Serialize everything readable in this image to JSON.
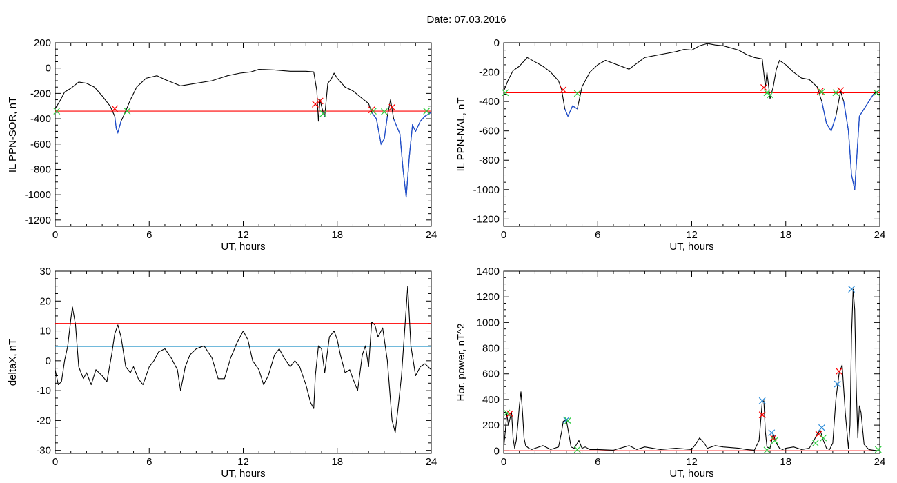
{
  "figure_title": "Date:  07.03.2016",
  "colors": {
    "trace": "#000000",
    "threshold_red": "#ff0000",
    "threshold_blue": "#1e90c8",
    "trace_blue": "#1f4fd0",
    "marker_red": "#ff0000",
    "marker_green": "#2ecc40",
    "marker_blue": "#2a8ad8"
  },
  "chart_data": [
    {
      "id": "il-ppn-sor",
      "type": "line",
      "title": "",
      "xlabel": "UT, hours",
      "ylabel": "IL PPN-SOR, nT",
      "xlim": [
        0,
        24
      ],
      "ylim": [
        -1250,
        200
      ],
      "xticks": [
        0,
        6,
        12,
        18,
        24
      ],
      "yticks": [
        200,
        0,
        -200,
        -400,
        -600,
        -800,
        -1000,
        -1200
      ],
      "grid": false,
      "threshold": {
        "value": -340,
        "color": "red"
      },
      "series": [
        {
          "x": [
            0,
            0.3,
            0.6,
            1.0,
            1.5,
            2.0,
            2.5,
            3.0,
            3.5,
            3.8,
            3.9,
            4.0,
            4.2,
            4.5,
            4.8,
            5.2,
            5.8,
            6.5,
            7.0,
            8.0,
            9.0,
            10.0,
            11.0,
            11.8,
            12.5,
            13.0,
            14.0,
            15.0,
            16.0,
            16.5,
            16.7,
            16.8,
            16.9,
            17.0,
            17.1,
            17.2,
            17.4,
            17.6,
            17.8,
            18.0,
            18.5,
            19.0,
            19.5,
            20.0,
            20.2,
            20.5,
            20.8,
            21.0,
            21.2,
            21.4,
            21.6,
            21.8,
            22.0,
            22.2,
            22.4,
            22.6,
            22.8,
            23.0,
            23.3,
            23.6,
            24.0
          ],
          "y": [
            -320,
            -260,
            -190,
            -160,
            -110,
            -120,
            -150,
            -220,
            -300,
            -380,
            -480,
            -510,
            -420,
            -340,
            -250,
            -150,
            -80,
            -60,
            -90,
            -140,
            -120,
            -100,
            -60,
            -40,
            -30,
            -10,
            -15,
            -25,
            -25,
            -30,
            -180,
            -420,
            -250,
            -300,
            -350,
            -380,
            -120,
            -90,
            -40,
            -80,
            -150,
            -180,
            -230,
            -280,
            -350,
            -400,
            -600,
            -560,
            -380,
            -250,
            -400,
            -460,
            -520,
            -800,
            -1020,
            -700,
            -450,
            -500,
            -420,
            -380,
            -350
          ]
        }
      ],
      "markers": [
        {
          "x": 3.8,
          "y": -320,
          "color": "red"
        },
        {
          "x": 4.6,
          "y": -340,
          "color": "green"
        },
        {
          "x": 16.6,
          "y": -285,
          "color": "red"
        },
        {
          "x": 16.9,
          "y": -260,
          "color": "red"
        },
        {
          "x": 17.1,
          "y": -360,
          "color": "green"
        },
        {
          "x": 20.2,
          "y": -330,
          "color": "red"
        },
        {
          "x": 20.3,
          "y": -340,
          "color": "green"
        },
        {
          "x": 21.0,
          "y": -345,
          "color": "green"
        },
        {
          "x": 21.5,
          "y": -310,
          "color": "red"
        },
        {
          "x": 23.7,
          "y": -340,
          "color": "green"
        },
        {
          "x": 0.1,
          "y": -340,
          "color": "green"
        }
      ]
    },
    {
      "id": "il-ppn-nal",
      "type": "line",
      "title": "",
      "xlabel": "UT, hours",
      "ylabel": "IL PPN-NAL, nT",
      "xlim": [
        0,
        24
      ],
      "ylim": [
        -1250,
        0
      ],
      "xticks": [
        0,
        6,
        12,
        18,
        24
      ],
      "yticks": [
        0,
        -200,
        -400,
        -600,
        -800,
        -1000,
        -1200
      ],
      "grid": false,
      "threshold": {
        "value": -340,
        "color": "red"
      },
      "series": [
        {
          "x": [
            0,
            0.3,
            0.6,
            1.0,
            1.5,
            2.0,
            2.5,
            3.0,
            3.5,
            3.7,
            3.9,
            4.1,
            4.4,
            4.7,
            5.0,
            5.5,
            6.0,
            6.5,
            7.0,
            8.0,
            9.0,
            10.0,
            11.0,
            11.5,
            12.0,
            12.5,
            13.0,
            13.5,
            14.0,
            15.0,
            15.5,
            16.0,
            16.5,
            16.7,
            16.8,
            17.0,
            17.2,
            17.4,
            17.6,
            18.0,
            18.5,
            19.0,
            19.5,
            20.0,
            20.3,
            20.6,
            20.9,
            21.2,
            21.5,
            21.7,
            22.0,
            22.2,
            22.4,
            22.7,
            23.0,
            23.3,
            23.6,
            24.0
          ],
          "y": [
            -330,
            -250,
            -190,
            -160,
            -100,
            -130,
            -160,
            -200,
            -260,
            -320,
            -450,
            -500,
            -430,
            -450,
            -300,
            -200,
            -150,
            -120,
            -140,
            -180,
            -100,
            -80,
            -60,
            -45,
            -50,
            -20,
            -5,
            -15,
            -20,
            -50,
            -80,
            -100,
            -110,
            -300,
            -200,
            -380,
            -300,
            -180,
            -120,
            -150,
            -200,
            -240,
            -250,
            -300,
            -400,
            -550,
            -600,
            -500,
            -330,
            -400,
            -600,
            -900,
            -1000,
            -500,
            -450,
            -400,
            -350,
            -320
          ]
        }
      ],
      "markers": [
        {
          "x": 3.8,
          "y": -320,
          "color": "red"
        },
        {
          "x": 4.7,
          "y": -345,
          "color": "green"
        },
        {
          "x": 16.6,
          "y": -305,
          "color": "red"
        },
        {
          "x": 16.8,
          "y": -340,
          "color": "green"
        },
        {
          "x": 17.0,
          "y": -355,
          "color": "green"
        },
        {
          "x": 20.2,
          "y": -330,
          "color": "red"
        },
        {
          "x": 20.3,
          "y": -335,
          "color": "green"
        },
        {
          "x": 21.2,
          "y": -340,
          "color": "green"
        },
        {
          "x": 21.5,
          "y": -325,
          "color": "red"
        },
        {
          "x": 23.8,
          "y": -340,
          "color": "green"
        },
        {
          "x": 0.1,
          "y": -340,
          "color": "green"
        }
      ]
    },
    {
      "id": "deltax",
      "type": "line",
      "title": "",
      "xlabel": "UT, hours",
      "ylabel": "deltaX, nT",
      "xlim": [
        0,
        24
      ],
      "ylim": [
        -31,
        30
      ],
      "xticks": [
        0,
        6,
        12,
        18,
        24
      ],
      "yticks": [
        30,
        20,
        10,
        0,
        -10,
        -20,
        -30
      ],
      "grid": false,
      "thresholds": [
        {
          "value": 12.5,
          "color": "red"
        },
        {
          "value": 4.8,
          "color": "blue"
        }
      ],
      "series": [
        {
          "x": [
            0,
            0.2,
            0.4,
            0.6,
            0.8,
            1.0,
            1.1,
            1.3,
            1.5,
            1.8,
            2.0,
            2.3,
            2.6,
            3.0,
            3.3,
            3.6,
            3.8,
            4.0,
            4.2,
            4.5,
            4.8,
            5.0,
            5.3,
            5.6,
            6.0,
            6.3,
            6.6,
            7.0,
            7.4,
            7.8,
            8.0,
            8.3,
            8.6,
            9.0,
            9.5,
            10.0,
            10.4,
            10.8,
            11.2,
            11.6,
            12.0,
            12.3,
            12.6,
            13.0,
            13.3,
            13.6,
            14.0,
            14.3,
            14.6,
            15.0,
            15.3,
            15.6,
            16.0,
            16.3,
            16.5,
            16.6,
            16.8,
            17.0,
            17.2,
            17.5,
            17.8,
            18.0,
            18.2,
            18.5,
            18.8,
            19.0,
            19.3,
            19.6,
            19.8,
            20.0,
            20.2,
            20.4,
            20.6,
            20.9,
            21.2,
            21.5,
            21.7,
            21.9,
            22.1,
            22.3,
            22.5,
            22.7,
            23.0,
            23.3,
            23.6,
            24.0
          ],
          "y": [
            -3,
            -8,
            -7,
            0,
            5,
            14,
            18,
            12,
            -2,
            -6,
            -4,
            -8,
            -3,
            -5,
            -7,
            2,
            9,
            12,
            8,
            -2,
            -4,
            -2,
            -6,
            -8,
            -2,
            0,
            3,
            4,
            1,
            -3,
            -10,
            -2,
            2,
            4,
            5,
            1,
            -6,
            -6,
            1,
            6,
            10,
            7,
            0,
            -3,
            -8,
            -5,
            2,
            4,
            1,
            -2,
            0,
            -2,
            -8,
            -14,
            -16,
            -5,
            5,
            4,
            -4,
            8,
            10,
            7,
            2,
            -4,
            -3,
            -6,
            -10,
            2,
            5,
            -2,
            13,
            12,
            8,
            11,
            0,
            -20,
            -24,
            -15,
            -5,
            10,
            25,
            5,
            -5,
            -2,
            -1,
            -3
          ]
        }
      ],
      "markers": []
    },
    {
      "id": "hor-power",
      "type": "line",
      "title": "",
      "xlabel": "UT, hours",
      "ylabel": "Hor. power, nT^2",
      "xlim": [
        0,
        24
      ],
      "ylim": [
        -20,
        1400
      ],
      "xticks": [
        0,
        6,
        12,
        18,
        24
      ],
      "yticks": [
        1400,
        1200,
        1000,
        800,
        600,
        400,
        200,
        0
      ],
      "grid": false,
      "threshold": {
        "value": 0,
        "color": "red"
      },
      "series": [
        {
          "x": [
            0,
            0.1,
            0.2,
            0.3,
            0.4,
            0.5,
            0.6,
            0.7,
            0.8,
            0.9,
            1.0,
            1.1,
            1.2,
            1.3,
            1.4,
            1.6,
            1.8,
            2.0,
            2.5,
            3.0,
            3.5,
            3.7,
            3.8,
            4.0,
            4.2,
            4.3,
            4.5,
            4.8,
            5.0,
            5.2,
            5.5,
            6.0,
            7.0,
            8.0,
            8.5,
            9.0,
            10.0,
            11.0,
            12.0,
            12.3,
            12.5,
            12.8,
            13.0,
            13.5,
            14.0,
            15.0,
            15.5,
            16.0,
            16.3,
            16.5,
            16.6,
            16.7,
            16.8,
            17.0,
            17.2,
            17.4,
            17.6,
            17.8,
            18.0,
            18.5,
            19.0,
            19.5,
            19.8,
            20.0,
            20.2,
            20.4,
            20.6,
            20.8,
            21.0,
            21.2,
            21.4,
            21.6,
            21.8,
            22.0,
            22.1,
            22.2,
            22.3,
            22.4,
            22.5,
            22.6,
            22.7,
            22.8,
            23.0,
            23.3,
            23.6,
            24.0
          ],
          "y": [
            20,
            150,
            290,
            200,
            250,
            300,
            100,
            20,
            80,
            200,
            350,
            460,
            300,
            100,
            40,
            20,
            10,
            20,
            40,
            10,
            30,
            150,
            230,
            240,
            100,
            30,
            20,
            80,
            20,
            30,
            10,
            10,
            5,
            40,
            10,
            30,
            10,
            20,
            10,
            60,
            100,
            60,
            20,
            40,
            30,
            20,
            10,
            5,
            80,
            380,
            390,
            150,
            30,
            20,
            130,
            60,
            20,
            10,
            20,
            30,
            10,
            20,
            80,
            130,
            160,
            80,
            20,
            10,
            60,
            400,
            600,
            670,
            300,
            20,
            200,
            900,
            1260,
            1100,
            500,
            100,
            350,
            300,
            50,
            10,
            5,
            0
          ]
        }
      ],
      "markers": [
        {
          "x": 0.2,
          "y": 295,
          "color": "green"
        },
        {
          "x": 0.4,
          "y": 290,
          "color": "red"
        },
        {
          "x": 4.0,
          "y": 240,
          "color": "blue"
        },
        {
          "x": 4.1,
          "y": 235,
          "color": "green"
        },
        {
          "x": 4.7,
          "y": 10,
          "color": "green"
        },
        {
          "x": 16.5,
          "y": 390,
          "color": "blue"
        },
        {
          "x": 16.5,
          "y": 280,
          "color": "red"
        },
        {
          "x": 16.8,
          "y": 5,
          "color": "green"
        },
        {
          "x": 17.1,
          "y": 140,
          "color": "blue"
        },
        {
          "x": 17.2,
          "y": 100,
          "color": "red"
        },
        {
          "x": 17.3,
          "y": 80,
          "color": "green"
        },
        {
          "x": 19.9,
          "y": 60,
          "color": "green"
        },
        {
          "x": 20.1,
          "y": 130,
          "color": "red"
        },
        {
          "x": 20.3,
          "y": 180,
          "color": "blue"
        },
        {
          "x": 20.4,
          "y": 100,
          "color": "green"
        },
        {
          "x": 21.3,
          "y": 520,
          "color": "blue"
        },
        {
          "x": 21.4,
          "y": 620,
          "color": "red"
        },
        {
          "x": 22.2,
          "y": 1260,
          "color": "blue"
        },
        {
          "x": 23.9,
          "y": 10,
          "color": "green"
        }
      ]
    }
  ]
}
